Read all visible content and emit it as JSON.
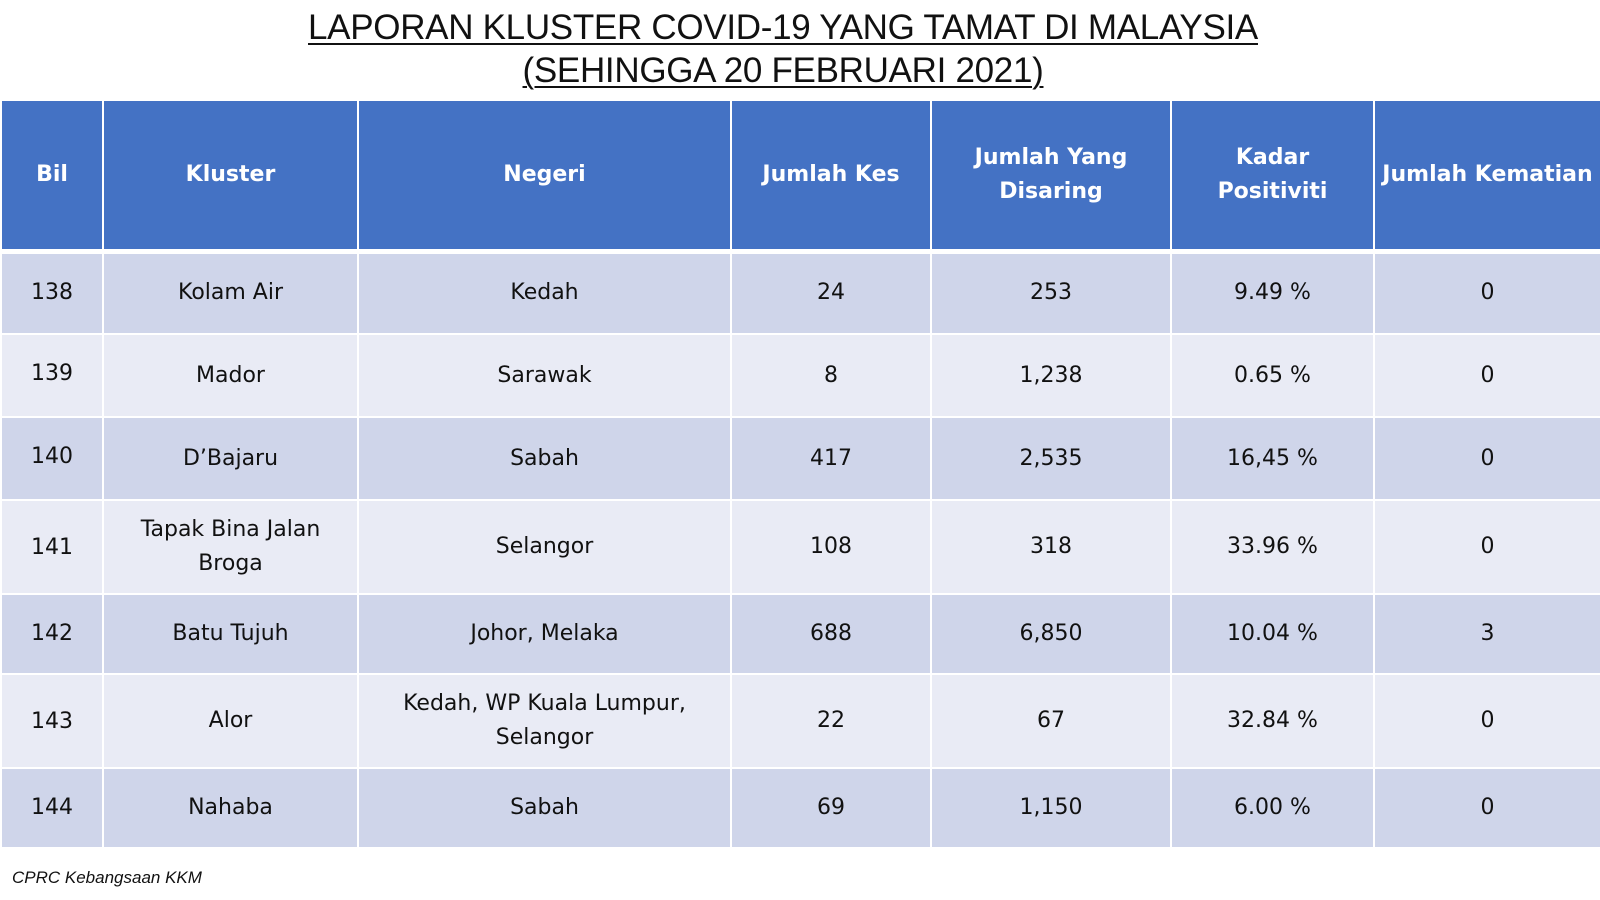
{
  "title": {
    "line1": "LAPORAN KLUSTER COVID-19 YANG TAMAT DI MALAYSIA",
    "line2": "(SEHINGGA  20 FEBRUARI 2021)"
  },
  "table": {
    "headers": {
      "bil": "Bil",
      "kluster": "Kluster",
      "negeri": "Negeri",
      "jumlah_kes": "Jumlah Kes",
      "jumlah_disaring_line1": "Jumlah Yang",
      "jumlah_disaring_line2": "Disaring",
      "kadar_positiviti": "Kadar Positiviti",
      "jumlah_kematian": "Jumlah Kematian"
    },
    "rows": [
      {
        "bil": "138",
        "kluster": "Kolam Air",
        "negeri": "Kedah",
        "kes": "24",
        "disaring": "253",
        "positiviti": "9.49 %",
        "kematian": "0"
      },
      {
        "bil": "139",
        "kluster": "Mador",
        "negeri": "Sarawak",
        "kes": "8",
        "disaring": "1,238",
        "positiviti": "0.65 %",
        "kematian": "0"
      },
      {
        "bil": "140",
        "kluster": "D’Bajaru",
        "negeri": "Sabah",
        "kes": "417",
        "disaring": "2,535",
        "positiviti": "16,45 %",
        "kematian": "0"
      },
      {
        "bil": "141",
        "kluster_line1": "Tapak Bina Jalan",
        "kluster_line2": "Broga",
        "negeri": "Selangor",
        "kes": "108",
        "disaring": "318",
        "positiviti": "33.96 %",
        "kematian": "0"
      },
      {
        "bil": "142",
        "kluster": "Batu Tujuh",
        "negeri": "Johor, Melaka",
        "kes": "688",
        "disaring": "6,850",
        "positiviti": "10.04 %",
        "kematian": "3"
      },
      {
        "bil": "143",
        "kluster": "Alor",
        "negeri_line1": "Kedah, WP Kuala Lumpur,",
        "negeri_line2": "Selangor",
        "kes": "22",
        "disaring": "67",
        "positiviti": "32.84 %",
        "kematian": "0"
      },
      {
        "bil": "144",
        "kluster": "Nahaba",
        "negeri": "Sabah",
        "kes": "69",
        "disaring": "1,150",
        "positiviti": "6.00 %",
        "kematian": "0"
      }
    ]
  },
  "source": "CPRC Kebangsaan KKM",
  "colors": {
    "header_bg": "#4472c4",
    "row_dark": "#cfd5ea",
    "row_light": "#e9ebf5"
  }
}
